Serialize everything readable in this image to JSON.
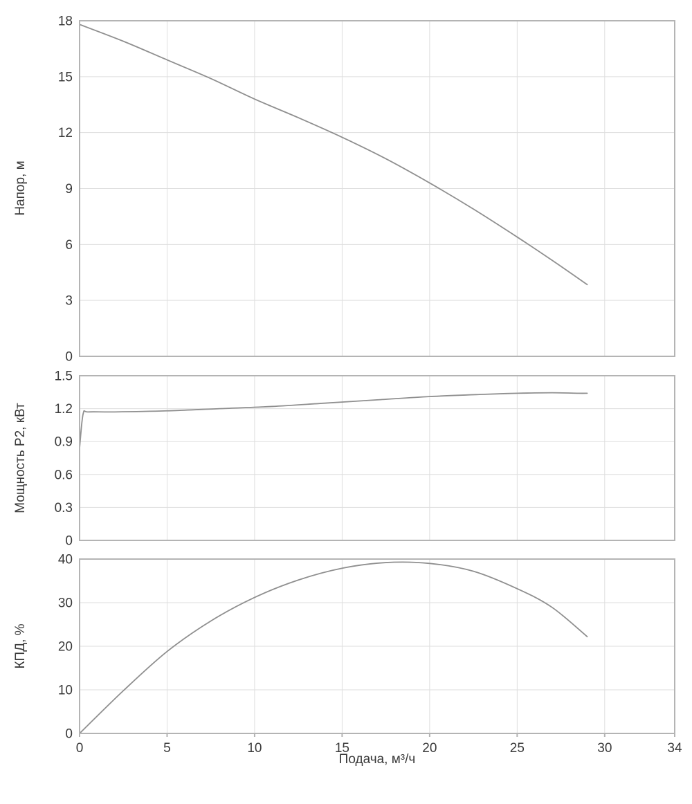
{
  "figure": {
    "background": "#ffffff",
    "grid_color": "#dedede",
    "border_color": "#b4b4b4",
    "curve_color": "#8f8f8f",
    "text_color": "#3a3a3a",
    "xlabel": "Подача, м³/ч"
  },
  "chart_data": [
    {
      "id": "head",
      "type": "line",
      "title": "",
      "ylabel": "Напор, м",
      "xlabel": "Подача, м³/ч",
      "xlim": [
        0,
        34
      ],
      "xticks": [
        0,
        5,
        10,
        15,
        20,
        25,
        30,
        34
      ],
      "ylim": [
        0,
        18
      ],
      "yticks": [
        0,
        3,
        6,
        9,
        12,
        15,
        18
      ],
      "grid": true,
      "legend": false,
      "series": [
        {
          "name": "Напор",
          "x": [
            0,
            2.5,
            5,
            7.5,
            10,
            12.5,
            15,
            17.5,
            20,
            22.5,
            25,
            27,
            29
          ],
          "y": [
            17.8,
            16.9,
            15.9,
            14.9,
            13.8,
            12.8,
            11.75,
            10.6,
            9.3,
            7.9,
            6.4,
            5.15,
            3.85
          ]
        }
      ]
    },
    {
      "id": "power",
      "type": "line",
      "title": "",
      "ylabel": "Мощность P2, кВт",
      "xlabel": "Подача, м³/ч",
      "xlim": [
        0,
        34
      ],
      "xticks": [
        0,
        5,
        10,
        15,
        20,
        25,
        30,
        34
      ],
      "ylim": [
        0,
        1.5
      ],
      "yticks": [
        0,
        0.3,
        0.6,
        0.9,
        1.2,
        1.5
      ],
      "grid": true,
      "legend": false,
      "series": [
        {
          "name": "Мощность P2",
          "x": [
            0,
            0.2,
            0.5,
            2,
            5,
            8,
            11,
            14,
            17,
            20,
            23,
            25,
            27,
            28.5,
            29
          ],
          "y": [
            0.84,
            1.15,
            1.17,
            1.17,
            1.18,
            1.2,
            1.22,
            1.25,
            1.28,
            1.31,
            1.33,
            1.34,
            1.345,
            1.34,
            1.34
          ]
        }
      ]
    },
    {
      "id": "efficiency",
      "type": "line",
      "title": "",
      "ylabel": "КПД, %",
      "xlabel": "Подача, м³/ч",
      "xlim": [
        0,
        34
      ],
      "xticks": [
        0,
        5,
        10,
        15,
        20,
        25,
        30,
        34
      ],
      "ylim": [
        0,
        40
      ],
      "yticks": [
        0,
        10,
        20,
        30,
        40
      ],
      "grid": true,
      "legend": false,
      "series": [
        {
          "name": "КПД",
          "x": [
            0,
            2.5,
            5,
            7.5,
            10,
            12.5,
            15,
            17.5,
            20,
            22.5,
            25,
            27,
            29
          ],
          "y": [
            0,
            9.8,
            18.8,
            25.8,
            31.2,
            35.2,
            37.9,
            39.2,
            39.0,
            37.2,
            33.2,
            28.9,
            22.2
          ]
        }
      ]
    }
  ]
}
